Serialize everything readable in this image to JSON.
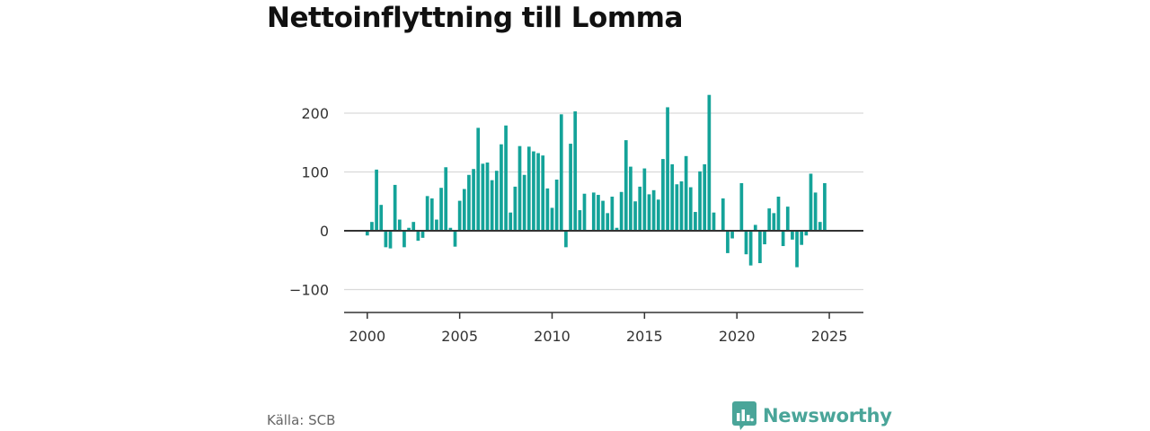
{
  "title": "Nettoinflyttning till Lomma",
  "source": "Källa: SCB",
  "brand": {
    "name": "Newsworthy",
    "color": "#4aa599",
    "icon": "bar-chart-speech-bubble-icon"
  },
  "colors": {
    "bar": "#14a399",
    "grid": "#d9d9d9",
    "zero_line": "#333333"
  },
  "chart_data": {
    "type": "bar",
    "title": "Nettoinflyttning till Lomma",
    "xlabel": "",
    "ylabel": "",
    "x_ticks": [
      2000,
      2005,
      2010,
      2015,
      2020,
      2025
    ],
    "y_ticks": [
      -100,
      0,
      100,
      200
    ],
    "y_tick_labels": [
      "−100",
      "0",
      "100",
      "200"
    ],
    "xlim": [
      1999.3,
      2026.7
    ],
    "ylim": [
      -140,
      240
    ],
    "grid": true,
    "start_year": 2000,
    "periods_per_year": 4,
    "values": [
      -8,
      15,
      104,
      44,
      -28,
      -30,
      78,
      19,
      -28,
      5,
      15,
      -17,
      -12,
      59,
      55,
      19,
      73,
      108,
      5,
      -27,
      51,
      71,
      95,
      105,
      175,
      114,
      116,
      86,
      102,
      147,
      179,
      31,
      75,
      144,
      95,
      143,
      135,
      132,
      128,
      72,
      39,
      87,
      198,
      -28,
      148,
      203,
      35,
      63,
      0,
      65,
      61,
      51,
      30,
      58,
      5,
      66,
      154,
      109,
      50,
      75,
      106,
      62,
      69,
      53,
      122,
      210,
      113,
      79,
      84,
      127,
      74,
      32,
      101,
      113,
      231,
      31,
      0,
      55,
      -38,
      -13,
      0,
      81,
      -40,
      -59,
      10,
      -55,
      -23,
      38,
      30,
      58,
      -26,
      41,
      -15,
      -62,
      -24,
      -8,
      97,
      65,
      15,
      81
    ]
  }
}
